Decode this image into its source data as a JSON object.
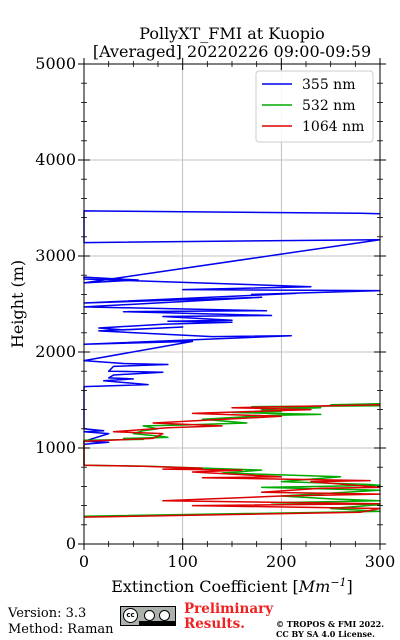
{
  "chart_data": {
    "type": "line",
    "title": "PollyXT_FMI at Kuopio",
    "subtitle": "[Averaged] 20220226 09:00-09:59",
    "xlabel": "Extinction Coefficient [",
    "xlabel_unit": "Mm",
    "xlabel_exp": "−1",
    "xlabel_end": "]",
    "ylabel": "Height (m)",
    "xlim": [
      0,
      300
    ],
    "ylim": [
      0,
      5000
    ],
    "x_ticks": [
      0,
      100,
      200,
      300
    ],
    "y_ticks": [
      0,
      1000,
      2000,
      3000,
      4000,
      5000
    ],
    "grid": true,
    "legend_position": "top-right",
    "series": [
      {
        "name": "355 nm",
        "color": "#0000ee",
        "points": [
          [
            300,
            3440
          ],
          [
            280,
            3445
          ],
          [
            0,
            3470
          ],
          [
            0,
            3140
          ],
          [
            300,
            3170
          ],
          [
            0,
            2720
          ],
          [
            55,
            2750
          ],
          [
            0,
            2780
          ],
          [
            0,
            2760
          ],
          [
            230,
            2680
          ],
          [
            100,
            2650
          ],
          [
            300,
            2640
          ],
          [
            170,
            2600
          ],
          [
            215,
            2610
          ],
          [
            0,
            2510
          ],
          [
            180,
            2570
          ],
          [
            0,
            2470
          ],
          [
            185,
            2430
          ],
          [
            40,
            2420
          ],
          [
            190,
            2380
          ],
          [
            80,
            2370
          ],
          [
            150,
            2330
          ],
          [
            85,
            2320
          ],
          [
            150,
            2310
          ],
          [
            80,
            2290
          ],
          [
            15,
            2250
          ],
          [
            40,
            2230
          ],
          [
            100,
            2260
          ],
          [
            15,
            2220
          ],
          [
            130,
            2160
          ],
          [
            210,
            2170
          ],
          [
            0,
            2080
          ],
          [
            110,
            2110
          ],
          [
            0,
            1910
          ],
          [
            40,
            1880
          ],
          [
            85,
            1870
          ],
          [
            30,
            1850
          ],
          [
            25,
            1800
          ],
          [
            80,
            1790
          ],
          [
            30,
            1760
          ],
          [
            25,
            1730
          ],
          [
            50,
            1720
          ],
          [
            20,
            1700
          ],
          [
            65,
            1660
          ],
          [
            0,
            1640
          ],
          [
            0,
            1200
          ],
          [
            20,
            1180
          ],
          [
            0,
            1170
          ],
          [
            25,
            1150
          ],
          [
            0,
            1070
          ],
          [
            25,
            1060
          ],
          [
            0,
            1040
          ]
        ]
      },
      {
        "name": "532 nm",
        "color": "#00aa00",
        "points": [
          [
            300,
            1460
          ],
          [
            250,
            1450
          ],
          [
            300,
            1440
          ],
          [
            170,
            1430
          ],
          [
            240,
            1420
          ],
          [
            180,
            1400
          ],
          [
            200,
            1380
          ],
          [
            150,
            1370
          ],
          [
            240,
            1350
          ],
          [
            190,
            1340
          ],
          [
            120,
            1300
          ],
          [
            165,
            1260
          ],
          [
            100,
            1240
          ],
          [
            60,
            1230
          ],
          [
            75,
            1200
          ],
          [
            60,
            1180
          ],
          [
            50,
            1150
          ],
          [
            80,
            1120
          ],
          [
            85,
            1110
          ],
          [
            40,
            1100
          ],
          [
            60,
            1090
          ],
          [
            0,
            1080
          ],
          [
            0,
            820
          ],
          [
            65,
            810
          ],
          [
            180,
            770
          ],
          [
            140,
            740
          ],
          [
            260,
            700
          ],
          [
            200,
            650
          ],
          [
            290,
            620
          ],
          [
            300,
            610
          ],
          [
            180,
            590
          ],
          [
            300,
            560
          ],
          [
            200,
            500
          ],
          [
            250,
            470
          ],
          [
            300,
            450
          ],
          [
            190,
            430
          ],
          [
            300,
            410
          ],
          [
            250,
            370
          ],
          [
            300,
            340
          ],
          [
            0,
            290
          ]
        ]
      },
      {
        "name": "1064 nm",
        "color": "#dd0000",
        "points": [
          [
            300,
            1450
          ],
          [
            150,
            1420
          ],
          [
            230,
            1400
          ],
          [
            110,
            1360
          ],
          [
            200,
            1330
          ],
          [
            70,
            1260
          ],
          [
            140,
            1230
          ],
          [
            85,
            1210
          ],
          [
            30,
            1170
          ],
          [
            80,
            1150
          ],
          [
            70,
            1100
          ],
          [
            0,
            1070
          ],
          [
            0,
            820
          ],
          [
            60,
            810
          ],
          [
            120,
            790
          ],
          [
            80,
            780
          ],
          [
            160,
            770
          ],
          [
            110,
            750
          ],
          [
            200,
            700
          ],
          [
            120,
            690
          ],
          [
            290,
            660
          ],
          [
            230,
            650
          ],
          [
            300,
            590
          ],
          [
            240,
            580
          ],
          [
            180,
            540
          ],
          [
            300,
            520
          ],
          [
            200,
            500
          ],
          [
            80,
            450
          ],
          [
            300,
            420
          ],
          [
            110,
            400
          ],
          [
            300,
            370
          ],
          [
            280,
            330
          ],
          [
            0,
            280
          ]
        ]
      }
    ]
  },
  "footer": {
    "version": "Version: 3.3",
    "method": "Method: Raman",
    "cc_label": "cc",
    "preliminary_line1": "Preliminary",
    "preliminary_line2": "Results.",
    "copyright_line1": "© TROPOS & FMI 2022.",
    "copyright_line2": "CC BY SA 4.0 License."
  }
}
